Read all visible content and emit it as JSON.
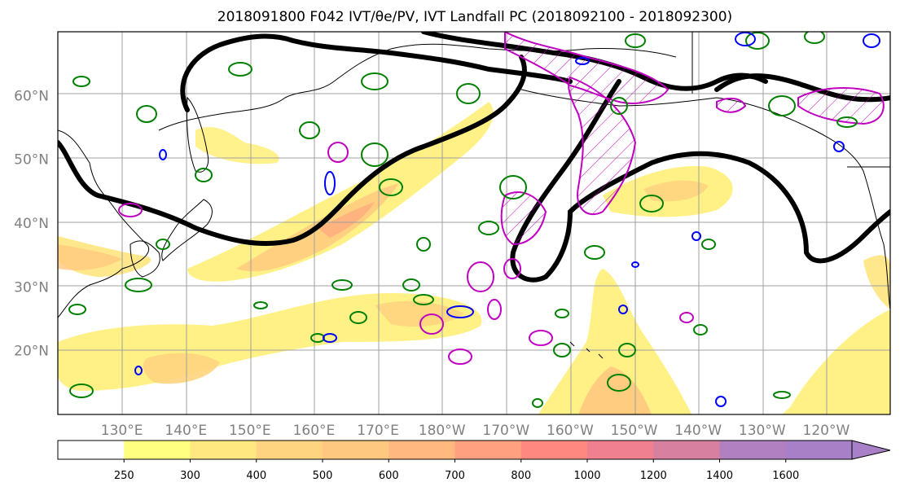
{
  "title": "2018091800 F042 IVT/θe/PV, IVT Landfall PC (2018092100 - 2018092300)",
  "map": {
    "lat_labels": [
      {
        "text": "60°N",
        "lat": 60
      },
      {
        "text": "50°N",
        "lat": 50
      },
      {
        "text": "40°N",
        "lat": 40
      },
      {
        "text": "30°N",
        "lat": 30
      },
      {
        "text": "20°N",
        "lat": 20
      }
    ],
    "lon_labels": [
      {
        "text": "130°E",
        "lon": 130
      },
      {
        "text": "140°E",
        "lon": 140
      },
      {
        "text": "150°E",
        "lon": 150
      },
      {
        "text": "160°E",
        "lon": 160
      },
      {
        "text": "170°E",
        "lon": 170
      },
      {
        "text": "180°W",
        "lon": 180
      },
      {
        "text": "170°W",
        "lon": 190
      },
      {
        "text": "160°W",
        "lon": 200
      },
      {
        "text": "150°W",
        "lon": 210
      },
      {
        "text": "140°W",
        "lon": 220
      },
      {
        "text": "130°W",
        "lon": 230
      },
      {
        "text": "120°W",
        "lon": 240
      }
    ],
    "extent": {
      "lon_min": 120,
      "lon_max": 250,
      "lat_min": 10,
      "lat_max": 70
    },
    "colors": {
      "theta_e_contour": "#000000",
      "pv_contour_green": "#008000",
      "pv_contour_blue": "#0000ff",
      "landfall_pc_contour": "#c000c0",
      "coastline": "#000000",
      "gridline": "#a0a0a0"
    }
  },
  "colorbar": {
    "levels": [
      "250",
      "300",
      "400",
      "500",
      "600",
      "700",
      "800",
      "1000",
      "1200",
      "1400",
      "1600"
    ],
    "colors": [
      "#ffffff",
      "#ffff80",
      "#ffe880",
      "#ffd480",
      "#ffc880",
      "#ffb880",
      "#ffa080",
      "#ff8880",
      "#f08090",
      "#d880a0",
      "#b080c0",
      "#a880c8"
    ]
  }
}
